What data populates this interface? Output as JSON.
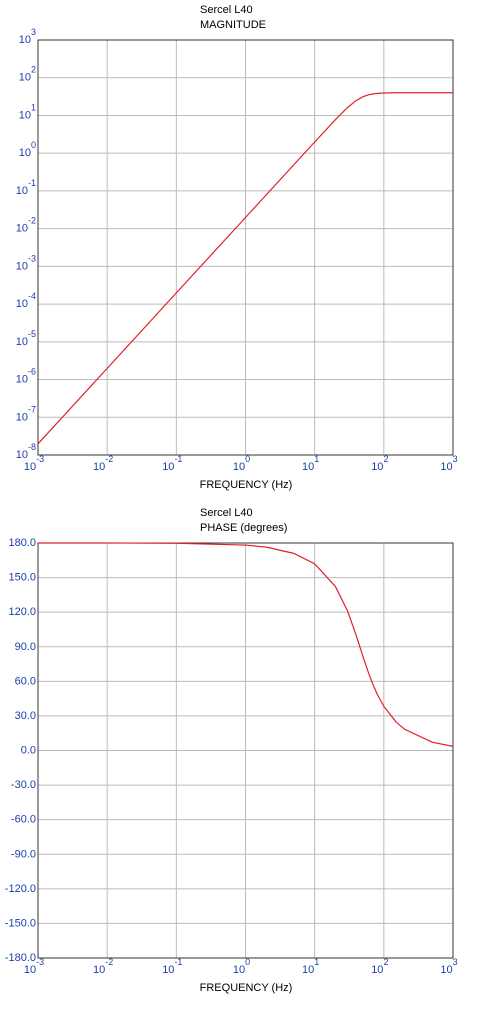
{
  "chart_data": [
    {
      "type": "line",
      "title": "Sercel L40",
      "subtitle": "MAGNITUDE",
      "x_label": "FREQUENCY (Hz)",
      "xscale": "log",
      "yscale": "log",
      "grid": true,
      "color": "#e0202a",
      "x": [
        0.001,
        0.01,
        0.1,
        1,
        2,
        5,
        10,
        20,
        30,
        40,
        50,
        60,
        70,
        80,
        100,
        150,
        200,
        500,
        1000
      ],
      "values": [
        1.98e-08,
        1.98e-06,
        0.000198,
        0.01975,
        0.079,
        0.494,
        1.975,
        7.78,
        16.37,
        25.0,
        31.4,
        35.2,
        37.2,
        38.4,
        39.4,
        39.9,
        40.0,
        40.0,
        40.0
      ],
      "xlim": [
        0.001,
        1000
      ],
      "ylim": [
        1e-08,
        1000
      ],
      "xticks": [
        {
          "value": 0.001,
          "label": "10",
          "exponent": "-3"
        },
        {
          "value": 0.01,
          "label": "10",
          "exponent": "-2"
        },
        {
          "value": 0.1,
          "label": "10",
          "exponent": "-1"
        },
        {
          "value": 1,
          "label": "10",
          "exponent": "0"
        },
        {
          "value": 10,
          "label": "10",
          "exponent": "1"
        },
        {
          "value": 100,
          "label": "10",
          "exponent": "2"
        },
        {
          "value": 1000,
          "label": "10",
          "exponent": "3"
        }
      ],
      "yticks": [
        {
          "value": 1000,
          "label": "10",
          "exponent": "3"
        },
        {
          "value": 100,
          "label": "10",
          "exponent": "2"
        },
        {
          "value": 10,
          "label": "10",
          "exponent": "1"
        },
        {
          "value": 1,
          "label": "10",
          "exponent": "0"
        },
        {
          "value": 0.1,
          "label": "10",
          "exponent": "-1"
        },
        {
          "value": 0.01,
          "label": "10",
          "exponent": "-2"
        },
        {
          "value": 0.001,
          "label": "10",
          "exponent": "-3"
        },
        {
          "value": 0.0001,
          "label": "10",
          "exponent": "-4"
        },
        {
          "value": 1e-05,
          "label": "10",
          "exponent": "-5"
        },
        {
          "value": 1e-06,
          "label": "10",
          "exponent": "-6"
        },
        {
          "value": 1e-07,
          "label": "10",
          "exponent": "-7"
        },
        {
          "value": 1e-08,
          "label": "10",
          "exponent": "-8"
        }
      ]
    },
    {
      "type": "line",
      "title": "Sercel L40",
      "subtitle": "PHASE (degrees)",
      "x_label": "FREQUENCY (Hz)",
      "xscale": "log",
      "yscale": "linear",
      "grid": true,
      "color": "#e0202a",
      "x": [
        0.001,
        0.01,
        0.1,
        1,
        2,
        5,
        10,
        20,
        30,
        40,
        50,
        60,
        70,
        80,
        100,
        150,
        200,
        500,
        1000
      ],
      "values": [
        180,
        180,
        179.8,
        178.2,
        176.4,
        171.0,
        161.9,
        142.2,
        120.8,
        99.6,
        81.4,
        67.4,
        56.9,
        49.0,
        38.3,
        24.8,
        18.4,
        7.2,
        3.6
      ],
      "xlim": [
        0.001,
        1000
      ],
      "ylim": [
        -180,
        180
      ],
      "xticks": [
        {
          "value": 0.001,
          "label": "10",
          "exponent": "-3"
        },
        {
          "value": 0.01,
          "label": "10",
          "exponent": "-2"
        },
        {
          "value": 0.1,
          "label": "10",
          "exponent": "-1"
        },
        {
          "value": 1,
          "label": "10",
          "exponent": "0"
        },
        {
          "value": 10,
          "label": "10",
          "exponent": "1"
        },
        {
          "value": 100,
          "label": "10",
          "exponent": "2"
        },
        {
          "value": 1000,
          "label": "10",
          "exponent": "3"
        }
      ],
      "yticks": [
        {
          "value": 180,
          "label": "180.0"
        },
        {
          "value": 150,
          "label": "150.0"
        },
        {
          "value": 120,
          "label": "120.0"
        },
        {
          "value": 90,
          "label": "90.0"
        },
        {
          "value": 60,
          "label": "60.0"
        },
        {
          "value": 30,
          "label": "30.0"
        },
        {
          "value": 0,
          "label": "0.0"
        },
        {
          "value": -30,
          "label": "-30.0"
        },
        {
          "value": -60,
          "label": "-60.0"
        },
        {
          "value": -90,
          "label": "-90.0"
        },
        {
          "value": -120,
          "label": "-120.0"
        },
        {
          "value": -150,
          "label": "-150.0"
        },
        {
          "value": -180,
          "label": "-180.0"
        }
      ]
    }
  ]
}
